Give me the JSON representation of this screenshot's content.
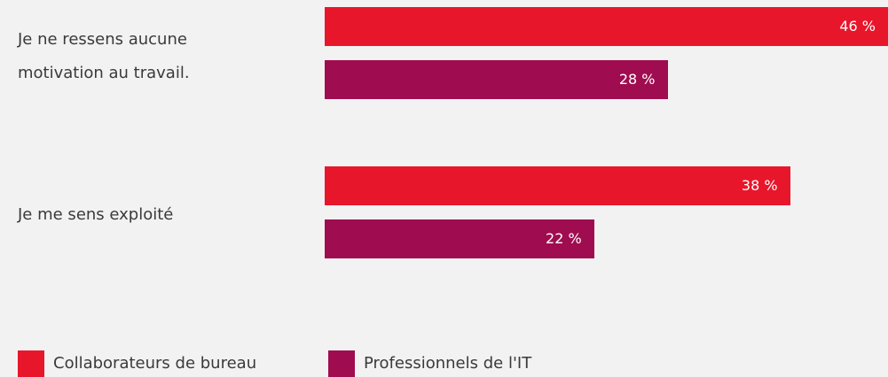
{
  "chart_data": {
    "type": "bar",
    "orientation": "horizontal",
    "categories": [
      "Je ne ressens aucune motivation au travail.",
      "Je me sens exploité"
    ],
    "series": [
      {
        "name": "Collaborateurs de bureau",
        "color": "#e8162b",
        "values": [
          46,
          38
        ],
        "value_labels": [
          "46 %",
          "38 %"
        ]
      },
      {
        "name": "Professionnels de l'IT",
        "color": "#a00c50",
        "values": [
          28,
          22
        ],
        "value_labels": [
          "28 %",
          "22 %"
        ]
      }
    ]
  }
}
